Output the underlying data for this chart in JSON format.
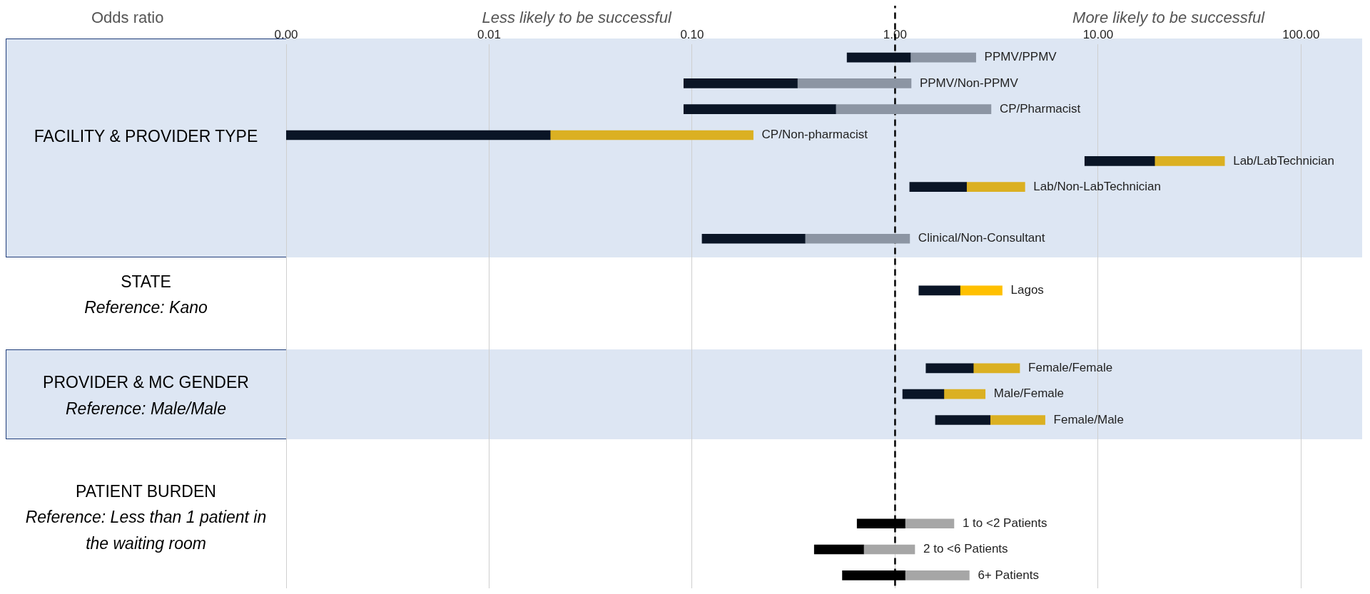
{
  "chart_data": {
    "type": "bar",
    "orientation": "horizontal",
    "title": "Odds ratio",
    "categories": [
      "PPMV/PPMV",
      "PPMV/Non-PPMV",
      "CP/Pharmacist",
      "CP/Non-pharmacist",
      "Lab/LabTechnician",
      "Lab/Non-LabTechnician",
      null,
      "Clinical/Non-Consultant",
      null,
      "Lagos",
      null,
      null,
      "Female/Female",
      "Male/Female",
      "Female/Male",
      null,
      null,
      null,
      "1 to <2 Patients",
      "2 to <6 Patients",
      "6+ Patients"
    ],
    "series": [
      {
        "base": [
          0.58,
          0.091,
          0.091,
          0.001,
          8.6,
          1.18,
          null,
          0.112,
          null,
          1.31,
          null,
          null,
          1.42,
          1.09,
          1.58,
          null,
          null,
          null,
          0.65,
          0.4,
          0.55
        ],
        "values": [
          0.61,
          0.239,
          0.419,
          0.019,
          10.4,
          1.07,
          null,
          0.248,
          null,
          0.78,
          null,
          null,
          1.01,
          0.65,
          1.36,
          null,
          null,
          null,
          0.47,
          0.3,
          0.57
        ],
        "colors": [
          "#0a1526",
          "#0a1526",
          "#0a1526",
          "#0a1526",
          "#0a1526",
          "#0a1526",
          null,
          "#0a1526",
          null,
          "#0a1526",
          null,
          null,
          "#0a1526",
          "#0a1526",
          "#0a1526",
          null,
          null,
          null,
          "#000000",
          "#000000",
          "#000000"
        ]
      },
      {
        "base": [
          1.19,
          0.33,
          0.51,
          0.02,
          19,
          2.25,
          null,
          0.36,
          null,
          2.09,
          null,
          null,
          2.43,
          1.74,
          2.94,
          null,
          null,
          null,
          1.12,
          0.7,
          1.12
        ],
        "values": [
          1.31,
          0.87,
          2.46,
          0.18,
          23,
          2.11,
          null,
          0.82,
          null,
          1.28,
          null,
          null,
          1.68,
          1.04,
          2.54,
          null,
          null,
          null,
          0.83,
          0.55,
          1.2
        ],
        "colors": [
          "#8c95a3",
          "#8c95a3",
          "#8c95a3",
          "#dbb022",
          "#dbb022",
          "#dbb022",
          null,
          "#8c95a3",
          null,
          "#ffc000",
          null,
          null,
          "#dbb022",
          "#dbb022",
          "#dbb022",
          null,
          null,
          null,
          "#a6a6a6",
          "#a6a6a6",
          "#a6a6a6"
        ]
      }
    ],
    "log": "x",
    "xlim": [
      0.001,
      200
    ],
    "xticks": [
      {
        "value": 0.001,
        "label": "0.00"
      },
      {
        "value": 0.01,
        "label": "0.01"
      },
      {
        "value": 0.1,
        "label": "0.10"
      },
      {
        "value": 1,
        "label": "1.00"
      },
      {
        "value": 10,
        "label": "10.00"
      },
      {
        "value": 100,
        "label": "100.00"
      }
    ],
    "grid": "x",
    "legend": false,
    "tick_labels": "x",
    "ref_lines": [
      {
        "axis": "x",
        "value": 1,
        "color": "#000000",
        "line_style": "dashed"
      }
    ],
    "annotations": [
      "Less likely to be successful",
      "More likely to be successful",
      "FACILITY & PROVIDER TYPE",
      "STATE",
      "Reference: Kano",
      "PROVIDER & MC GENDER",
      "Reference: Male/Male",
      "PATIENT BURDEN",
      "Reference: Less than 1 patient in the waiting room"
    ]
  }
}
